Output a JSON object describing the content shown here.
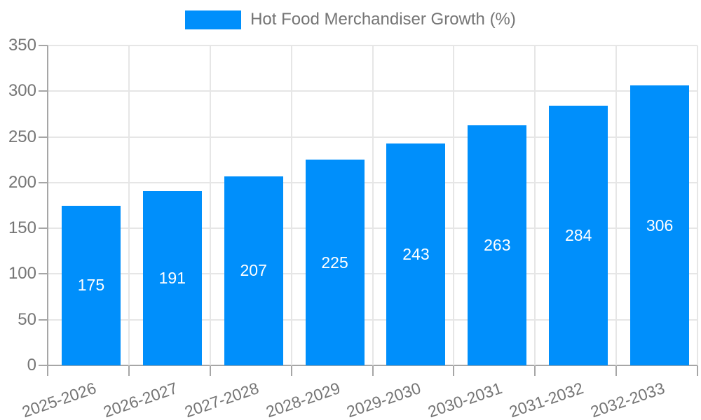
{
  "legend": {
    "label": "Hot Food Merchandiser Growth (%)"
  },
  "chart_data": {
    "type": "bar",
    "title": "Hot Food Merchandiser Growth (%)",
    "series_name": "Hot Food Merchandiser Growth (%)",
    "categories": [
      "2025-2026",
      "2026-2027",
      "2027-2028",
      "2028-2029",
      "2029-2030",
      "2030-2031",
      "2031-2032",
      "2032-2033"
    ],
    "values": [
      175,
      191,
      207,
      225,
      243,
      263,
      284,
      306
    ],
    "value_labels": [
      "175",
      "191",
      "207",
      "225",
      "243",
      "263",
      "284",
      "306"
    ],
    "xlabel": "",
    "ylabel": "",
    "ylim": [
      0,
      350
    ],
    "yticks": [
      0,
      50,
      100,
      150,
      200,
      250,
      300,
      350
    ],
    "grid": true,
    "legend_position": "top",
    "colors": {
      "bar": "#008FFB",
      "value_label": "#ffffff",
      "axis_text": "#757575",
      "gridline": "#e6e6e6",
      "axis_line": "#a6a6a6",
      "background": "#ffffff"
    }
  }
}
